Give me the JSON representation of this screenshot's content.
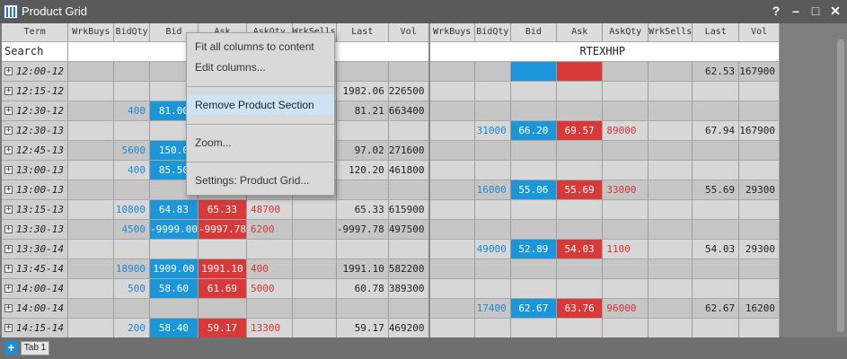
{
  "window": {
    "title": "Product Grid",
    "btn_help": "?",
    "btn_min": "–",
    "btn_max": "□",
    "btn_close": "✕"
  },
  "columns": [
    "Term",
    "WrkBuys",
    "BidQty",
    "Bid",
    "Ask",
    "AskQty",
    "WrkSells",
    "Last",
    "Vol",
    "WrkBuys",
    "BidQty",
    "Bid",
    "Ask",
    "AskQty",
    "WrkSells",
    "Last",
    "Vol"
  ],
  "search": "Search",
  "product2": "RTEXHHP",
  "rows": [
    {
      "term": "12:00-12",
      "l": {
        "bq": "",
        "b": "",
        "a": "",
        "aq": "",
        "last": "",
        "vol": ""
      },
      "r": {
        "bq": "",
        "b": "",
        "a": "",
        "aq": "",
        "last": "62.53",
        "vol": "167900"
      },
      "rbid": true
    },
    {
      "term": "12:15-12",
      "l": {
        "bq": "",
        "b": "",
        "a": "",
        "aq": "",
        "last": "1982.06",
        "vol": "226500"
      },
      "r": {
        "bq": "",
        "b": "",
        "a": "",
        "aq": "",
        "last": "",
        "vol": ""
      },
      "lbid": true
    },
    {
      "term": "12:30-12",
      "l": {
        "bq": "400",
        "b": "81.00",
        "a": "",
        "aq": "",
        "last": "81.21",
        "vol": "663400"
      },
      "r": {
        "bq": "",
        "b": "",
        "a": "",
        "aq": "",
        "last": "",
        "vol": ""
      },
      "lbid": true
    },
    {
      "term": "12:30-13",
      "l": {
        "bq": "",
        "b": "",
        "a": "",
        "aq": "",
        "last": "",
        "vol": ""
      },
      "r": {
        "bq": "31000",
        "b": "66.20",
        "a": "69.57",
        "aq": "89000",
        "last": "67.94",
        "vol": "167900"
      },
      "rbid": true
    },
    {
      "term": "12:45-13",
      "l": {
        "bq": "5600",
        "b": "150.0",
        "a": "",
        "aq": "",
        "last": "97.02",
        "vol": "271600"
      },
      "r": {
        "bq": "",
        "b": "",
        "a": "",
        "aq": "",
        "last": "",
        "vol": ""
      },
      "lbid": true
    },
    {
      "term": "13:00-13",
      "l": {
        "bq": "400",
        "b": "85.50",
        "a": "",
        "aq": "",
        "last": "120.20",
        "vol": "461800"
      },
      "r": {
        "bq": "",
        "b": "",
        "a": "",
        "aq": "",
        "last": "",
        "vol": ""
      },
      "lbid": true
    },
    {
      "term": "13:00-13",
      "l": {
        "bq": "",
        "b": "",
        "a": "",
        "aq": "",
        "last": "",
        "vol": ""
      },
      "r": {
        "bq": "16000",
        "b": "55.06",
        "a": "55.69",
        "aq": "33000",
        "last": "55.69",
        "vol": "29300"
      },
      "rbid": true
    },
    {
      "term": "13:15-13",
      "l": {
        "bq": "10800",
        "b": "64.83",
        "a": "65.33",
        "aq": "48700",
        "last": "65.33",
        "vol": "615900"
      },
      "r": {
        "bq": "",
        "b": "",
        "a": "",
        "aq": "",
        "last": "",
        "vol": ""
      },
      "lbid": true
    },
    {
      "term": "13:30-13",
      "l": {
        "bq": "4500",
        "b": "-9999.00",
        "a": "-9997.78",
        "aq": "6200",
        "last": "-9997.78",
        "vol": "497500"
      },
      "r": {
        "bq": "",
        "b": "",
        "a": "",
        "aq": "",
        "last": "",
        "vol": ""
      },
      "lbid": true
    },
    {
      "term": "13:30-14",
      "l": {
        "bq": "",
        "b": "",
        "a": "",
        "aq": "",
        "last": "",
        "vol": ""
      },
      "r": {
        "bq": "49000",
        "b": "52.89",
        "a": "54.03",
        "aq": "1100",
        "last": "54.03",
        "vol": "29300"
      },
      "rbid": true
    },
    {
      "term": "13:45-14",
      "l": {
        "bq": "18900",
        "b": "1909.00",
        "a": "1991.10",
        "aq": "400",
        "last": "1991.10",
        "vol": "582200"
      },
      "r": {
        "bq": "",
        "b": "",
        "a": "",
        "aq": "",
        "last": "",
        "vol": ""
      },
      "lbid": true
    },
    {
      "term": "14:00-14",
      "l": {
        "bq": "500",
        "b": "58.60",
        "a": "61.69",
        "aq": "5000",
        "last": "60.78",
        "vol": "389300"
      },
      "r": {
        "bq": "",
        "b": "",
        "a": "",
        "aq": "",
        "last": "",
        "vol": ""
      },
      "lbid": true
    },
    {
      "term": "14:00-14",
      "l": {
        "bq": "",
        "b": "",
        "a": "",
        "aq": "",
        "last": "",
        "vol": ""
      },
      "r": {
        "bq": "17400",
        "b": "62.67",
        "a": "63.76",
        "aq": "96000",
        "last": "62.67",
        "vol": "16200"
      },
      "rbid": true
    },
    {
      "term": "14:15-14",
      "l": {
        "bq": "200",
        "b": "58.40",
        "a": "59.17",
        "aq": "13300",
        "last": "59.17",
        "vol": "469200"
      },
      "r": {
        "bq": "",
        "b": "",
        "a": "",
        "aq": "",
        "last": "",
        "vol": ""
      },
      "lbid": true
    },
    {
      "term": "",
      "l": {
        "bq": "",
        "b": "",
        "a": "",
        "aq": "",
        "last": "",
        "vol": ""
      },
      "r": {
        "bq": "",
        "b": "",
        "a": "",
        "aq": "",
        "last": "",
        "vol": ""
      }
    }
  ],
  "menu": {
    "items": [
      "Fit all columns to content",
      "Edit columns...",
      "Remove Product Section",
      "Zoom...",
      "Settings: Product Grid..."
    ]
  },
  "tabs": {
    "add": "+",
    "tab1": "Tab 1"
  },
  "colors": {
    "bid": "#1a96d9",
    "ask": "#d83a3a",
    "menu_highlight": "#cce3f6"
  }
}
